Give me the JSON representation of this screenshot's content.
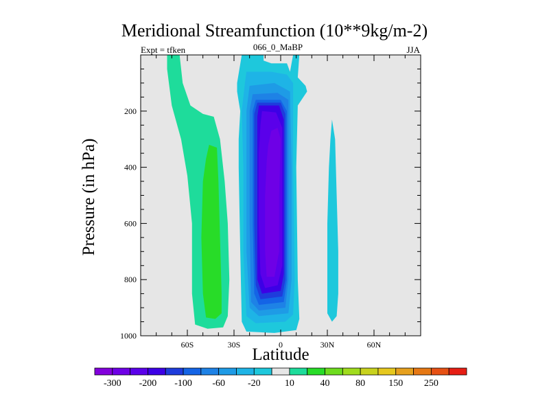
{
  "header": {
    "title": "Meridional Streamfunction (10**9kg/m-2)",
    "left_note": "Expt = tfken",
    "center_note": "066_0_MaBP",
    "right_note": "JJA"
  },
  "chart_data": {
    "type": "heatmap",
    "title": "Meridional Streamfunction (10**9kg/m-2)",
    "xlabel": "Latitude",
    "ylabel": "Pressure (in hPa)",
    "xlim": [
      -90,
      90
    ],
    "ylim": [
      1000,
      0
    ],
    "x_ticks": [
      {
        "value": -60,
        "label": "60S"
      },
      {
        "value": -30,
        "label": "30S"
      },
      {
        "value": 0,
        "label": "0"
      },
      {
        "value": 30,
        "label": "30N"
      },
      {
        "value": 60,
        "label": "60N"
      }
    ],
    "y_ticks": [
      {
        "value": 200,
        "label": "200"
      },
      {
        "value": 400,
        "label": "400"
      },
      {
        "value": 600,
        "label": "600"
      },
      {
        "value": 800,
        "label": "800"
      },
      {
        "value": 1000,
        "label": "1000"
      }
    ],
    "background_color": "#e6e6e6",
    "colorbar": {
      "colors": [
        "#8200dc",
        "#6e00e6",
        "#5a00ea",
        "#3c00e6",
        "#1e3cdc",
        "#1464e6",
        "#1e82e6",
        "#1e9be6",
        "#1eb4e6",
        "#1ec8dc",
        "#e6e6e6",
        "#1edc9b",
        "#28dc28",
        "#6edc1e",
        "#a0dc1e",
        "#c8d21e",
        "#e6c81e",
        "#e6a01e",
        "#e67814",
        "#e65014",
        "#e61e14"
      ],
      "labels": [
        {
          "after_index": 0,
          "text": "-300"
        },
        {
          "after_index": 2,
          "text": "-200"
        },
        {
          "after_index": 4,
          "text": "-100"
        },
        {
          "after_index": 6,
          "text": "-60"
        },
        {
          "after_index": 8,
          "text": "-20"
        },
        {
          "after_index": 10,
          "text": "10"
        },
        {
          "after_index": 12,
          "text": "40"
        },
        {
          "after_index": 14,
          "text": "80"
        },
        {
          "after_index": 16,
          "text": "150"
        },
        {
          "after_index": 18,
          "text": "250"
        }
      ]
    },
    "regions": [
      {
        "name": "sh-positive-outer",
        "color": "#1edc9b",
        "points": [
          [
            -73,
            0
          ],
          [
            -65,
            0
          ],
          [
            -63,
            100
          ],
          [
            -58,
            180
          ],
          [
            -50,
            210
          ],
          [
            -43,
            220
          ],
          [
            -39,
            300
          ],
          [
            -36,
            450
          ],
          [
            -34,
            600
          ],
          [
            -33,
            800
          ],
          [
            -34,
            930
          ],
          [
            -37,
            970
          ],
          [
            -47,
            975
          ],
          [
            -55,
            960
          ],
          [
            -57,
            850
          ],
          [
            -57,
            600
          ],
          [
            -60,
            430
          ],
          [
            -64,
            300
          ],
          [
            -70,
            180
          ],
          [
            -73,
            50
          ]
        ]
      },
      {
        "name": "sh-positive-inner",
        "color": "#28dc28",
        "points": [
          [
            -46,
            320
          ],
          [
            -41,
            330
          ],
          [
            -40,
            450
          ],
          [
            -39,
            650
          ],
          [
            -38,
            850
          ],
          [
            -38,
            920
          ],
          [
            -42,
            940
          ],
          [
            -48,
            935
          ],
          [
            -50,
            850
          ],
          [
            -51,
            650
          ],
          [
            -50,
            450
          ],
          [
            -48,
            370
          ]
        ]
      },
      {
        "name": "neg-level-1",
        "color": "#1ec8dc",
        "points": [
          [
            -25,
            0
          ],
          [
            -11,
            0
          ],
          [
            -11,
            20
          ],
          [
            -6,
            30
          ],
          [
            4,
            30
          ],
          [
            6,
            60
          ],
          [
            8,
            0
          ],
          [
            12,
            0
          ],
          [
            11,
            80
          ],
          [
            16,
            110
          ],
          [
            17,
            130
          ],
          [
            11,
            180
          ],
          [
            10,
            400
          ],
          [
            11,
            800
          ],
          [
            12,
            940
          ],
          [
            10,
            980
          ],
          [
            -4,
            990
          ],
          [
            -22,
            985
          ],
          [
            -25,
            950
          ],
          [
            -26,
            700
          ],
          [
            -27,
            400
          ],
          [
            -27,
            300
          ],
          [
            -26,
            200
          ],
          [
            -28,
            130
          ],
          [
            -28,
            100
          ]
        ]
      },
      {
        "name": "neg-level-2",
        "color": "#1eb4e6",
        "points": [
          [
            -22,
            60
          ],
          [
            -6,
            60
          ],
          [
            4,
            70
          ],
          [
            8,
            100
          ],
          [
            8,
            400
          ],
          [
            9,
            800
          ],
          [
            8,
            925
          ],
          [
            3,
            950
          ],
          [
            -16,
            955
          ],
          [
            -22,
            930
          ],
          [
            -24,
            700
          ],
          [
            -24,
            400
          ],
          [
            -25,
            200
          ],
          [
            -23,
            100
          ]
        ]
      },
      {
        "name": "neg-level-3",
        "color": "#1e9be6",
        "points": [
          [
            -20,
            110
          ],
          [
            -4,
            100
          ],
          [
            6,
            130
          ],
          [
            7,
            400
          ],
          [
            7,
            800
          ],
          [
            5,
            920
          ],
          [
            -14,
            930
          ],
          [
            -20,
            900
          ],
          [
            -22,
            700
          ],
          [
            -22,
            400
          ],
          [
            -22,
            200
          ]
        ]
      },
      {
        "name": "neg-level-4",
        "color": "#1e82e6",
        "points": [
          [
            -18,
            140
          ],
          [
            -2,
            135
          ],
          [
            5,
            160
          ],
          [
            5,
            800
          ],
          [
            3,
            900
          ],
          [
            -14,
            910
          ],
          [
            -19,
            880
          ],
          [
            -20,
            600
          ],
          [
            -20,
            300
          ],
          [
            -20,
            200
          ]
        ]
      },
      {
        "name": "neg-level-5",
        "color": "#1464e6",
        "points": [
          [
            -16,
            160
          ],
          [
            0,
            160
          ],
          [
            4,
            200
          ],
          [
            4,
            800
          ],
          [
            2,
            880
          ],
          [
            -14,
            890
          ],
          [
            -17,
            850
          ],
          [
            -18,
            600
          ],
          [
            -18,
            300
          ],
          [
            -18,
            200
          ]
        ]
      },
      {
        "name": "neg-level-6",
        "color": "#1e3cdc",
        "points": [
          [
            -15,
            170
          ],
          [
            0,
            170
          ],
          [
            3,
            210
          ],
          [
            3,
            800
          ],
          [
            1,
            860
          ],
          [
            -13,
            870
          ],
          [
            -16,
            820
          ],
          [
            -17,
            600
          ],
          [
            -17,
            300
          ],
          [
            -17,
            210
          ]
        ]
      },
      {
        "name": "neg-level-7",
        "color": "#3c00e6",
        "points": [
          [
            -14,
            180
          ],
          [
            -1,
            180
          ],
          [
            2,
            230
          ],
          [
            2,
            780
          ],
          [
            0,
            840
          ],
          [
            -12,
            850
          ],
          [
            -15,
            800
          ],
          [
            -15,
            600
          ],
          [
            -15,
            300
          ],
          [
            -15,
            220
          ]
        ]
      },
      {
        "name": "neg-level-8",
        "color": "#5a00ea",
        "points": [
          [
            -12,
            200
          ],
          [
            -3,
            205
          ],
          [
            1,
            260
          ],
          [
            1,
            750
          ],
          [
            -2,
            820
          ],
          [
            -10,
            830
          ],
          [
            -13,
            780
          ],
          [
            -14,
            600
          ],
          [
            -14,
            350
          ],
          [
            -13,
            250
          ]
        ]
      },
      {
        "name": "neg-level-9",
        "color": "#6e00e6",
        "points": [
          [
            -6,
            270
          ],
          [
            -2,
            260
          ],
          [
            0,
            300
          ],
          [
            -1,
            500
          ],
          [
            -1,
            700
          ],
          [
            -4,
            790
          ],
          [
            -9,
            790
          ],
          [
            -10,
            700
          ],
          [
            -10,
            500
          ],
          [
            -9,
            380
          ],
          [
            -8,
            320
          ]
        ]
      },
      {
        "name": "nh-negative-cell",
        "color": "#1ec8dc",
        "points": [
          [
            33,
            230
          ],
          [
            35,
            300
          ],
          [
            36,
            500
          ],
          [
            37,
            700
          ],
          [
            37,
            850
          ],
          [
            36,
            930
          ],
          [
            33,
            950
          ],
          [
            30,
            920
          ],
          [
            30,
            800
          ],
          [
            30,
            600
          ],
          [
            31,
            400
          ],
          [
            32,
            300
          ]
        ]
      }
    ]
  }
}
